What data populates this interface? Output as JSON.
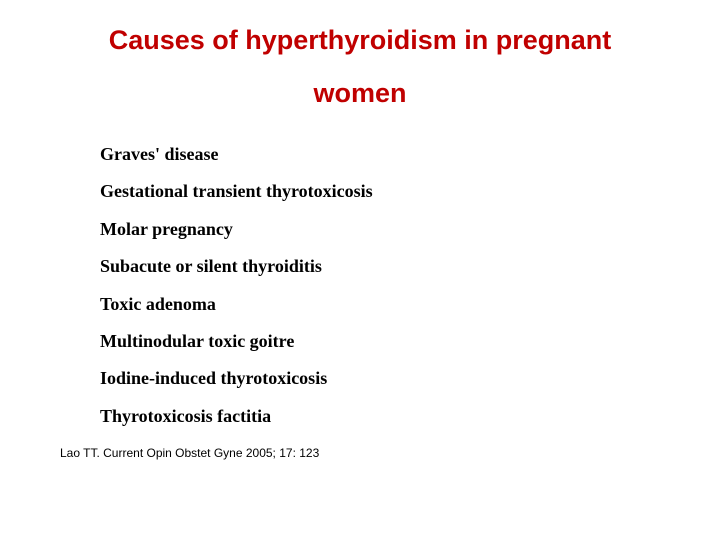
{
  "title": {
    "line1": "Causes of hyperthyroidism in pregnant",
    "line2": "women",
    "color": "#c00000",
    "fontsize": 27,
    "font_family": "Arial",
    "font_weight": "bold"
  },
  "causes": {
    "items": [
      "Graves' disease",
      "Gestational transient thyrotoxicosis",
      "Molar pregnancy",
      "Subacute or silent thyroiditis",
      "Toxic adenoma",
      "Multinodular toxic goitre",
      "Iodine-induced thyrotoxicosis",
      "Thyrotoxicosis factitia"
    ],
    "color": "#000000",
    "fontsize": 18,
    "font_family": "Times New Roman",
    "font_weight": "bold"
  },
  "citation": {
    "text": "Lao TT. Current Opin Obstet Gyne 2005; 17: 123",
    "color": "#000000",
    "fontsize": 12,
    "font_family": "Arial"
  },
  "background_color": "#ffffff"
}
